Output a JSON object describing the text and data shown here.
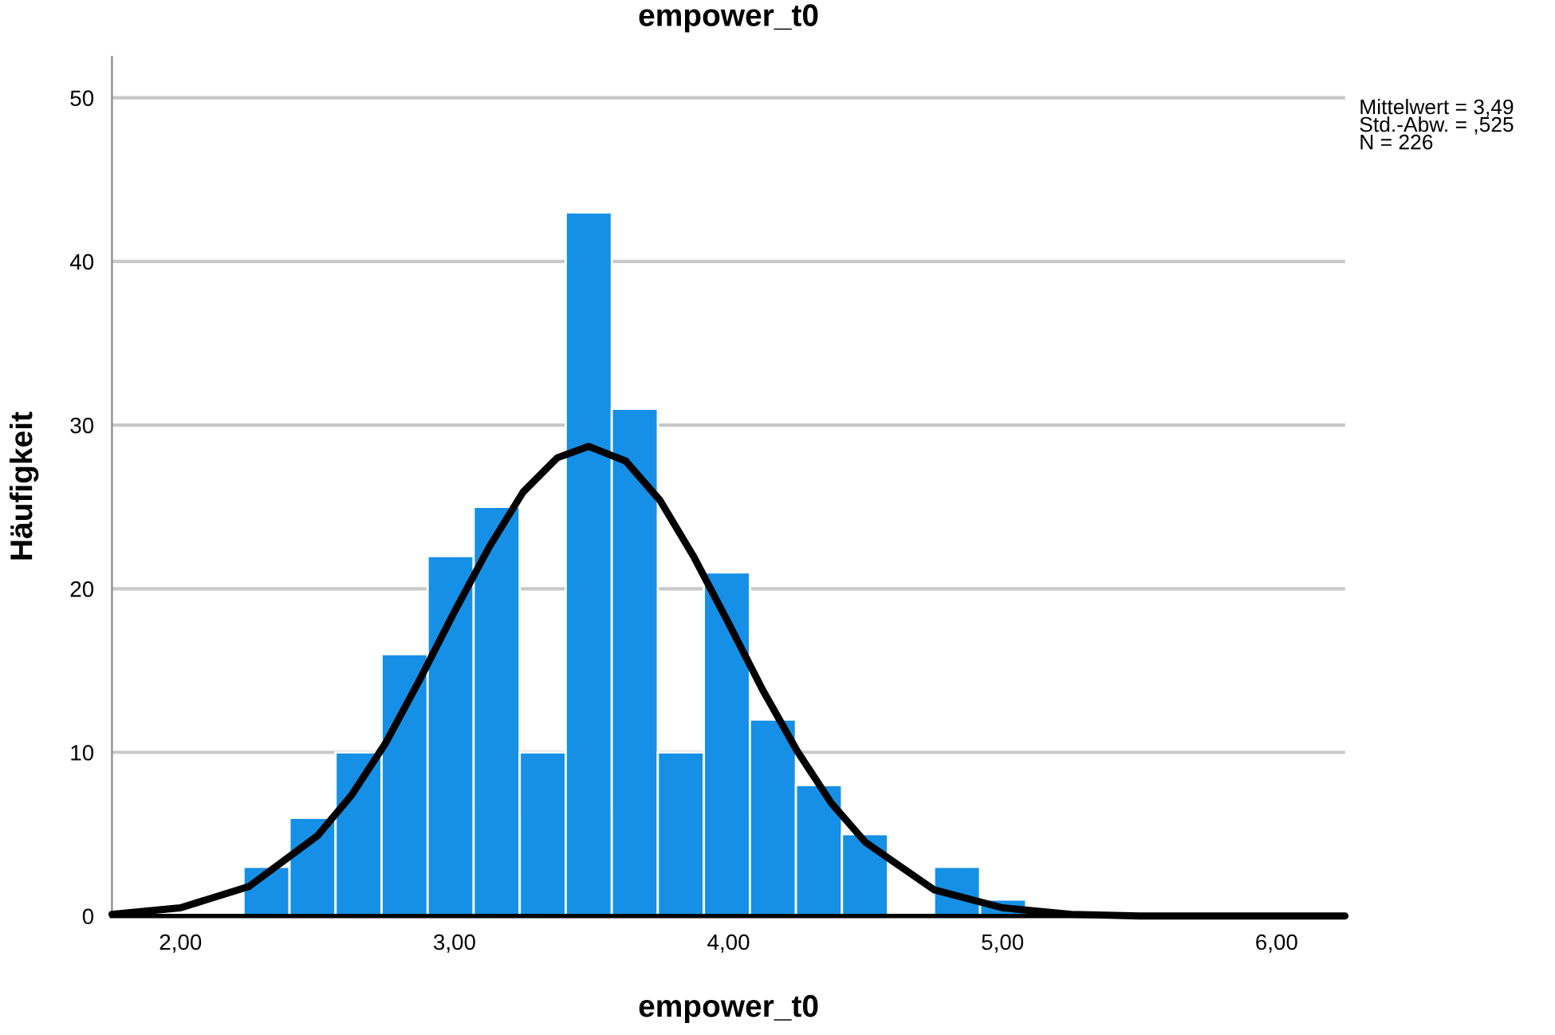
{
  "chart_data": {
    "type": "histogram",
    "title": "empower_t0",
    "xlabel": "empower_t0",
    "ylabel": "Häufigkeit",
    "bins": [
      2.23,
      2.398,
      2.566,
      2.734,
      2.902,
      3.07,
      3.238,
      3.406,
      3.574,
      3.742,
      3.91,
      4.078,
      4.246,
      4.414,
      4.582,
      4.75,
      4.918,
      5.086
    ],
    "values": [
      3,
      6,
      10,
      16,
      22,
      25,
      10,
      43,
      31,
      10,
      21,
      12,
      8,
      5,
      0,
      3,
      1
    ],
    "color": "#1590e6",
    "series": [
      {
        "type": "line",
        "color": "#000000",
        "x": [
          1.75,
          2.0,
          2.25,
          2.5,
          2.625,
          2.75,
          2.875,
          3.0,
          3.125,
          3.25,
          3.375,
          3.49,
          3.625,
          3.75,
          3.875,
          4.0,
          4.125,
          4.25,
          4.375,
          4.5,
          4.75,
          5.0,
          5.25,
          5.5,
          5.75,
          6.0,
          6.25
        ],
        "values": [
          0.1,
          0.5,
          1.8,
          4.9,
          7.4,
          10.6,
          14.5,
          18.6,
          22.5,
          25.9,
          28.0,
          28.7,
          27.8,
          25.4,
          21.9,
          17.9,
          13.8,
          10.1,
          6.9,
          4.5,
          1.6,
          0.5,
          0.1,
          0,
          0,
          0,
          0
        ]
      }
    ],
    "xlim": [
      1.75,
      6.25
    ],
    "xticks": [
      {
        "value": 2,
        "label": "2,00"
      },
      {
        "value": 3,
        "label": "3,00"
      },
      {
        "value": 4,
        "label": "4,00"
      },
      {
        "value": 5,
        "label": "5,00"
      },
      {
        "value": 6,
        "label": "6,00"
      }
    ],
    "ylim": [
      0,
      52.5
    ],
    "yticks": [
      0,
      10,
      20,
      30,
      40,
      50
    ],
    "grid": "y",
    "annotations": [
      "Mittelwert = 3,49",
      "Std.-Abw. = ,525",
      "N = 226"
    ]
  }
}
